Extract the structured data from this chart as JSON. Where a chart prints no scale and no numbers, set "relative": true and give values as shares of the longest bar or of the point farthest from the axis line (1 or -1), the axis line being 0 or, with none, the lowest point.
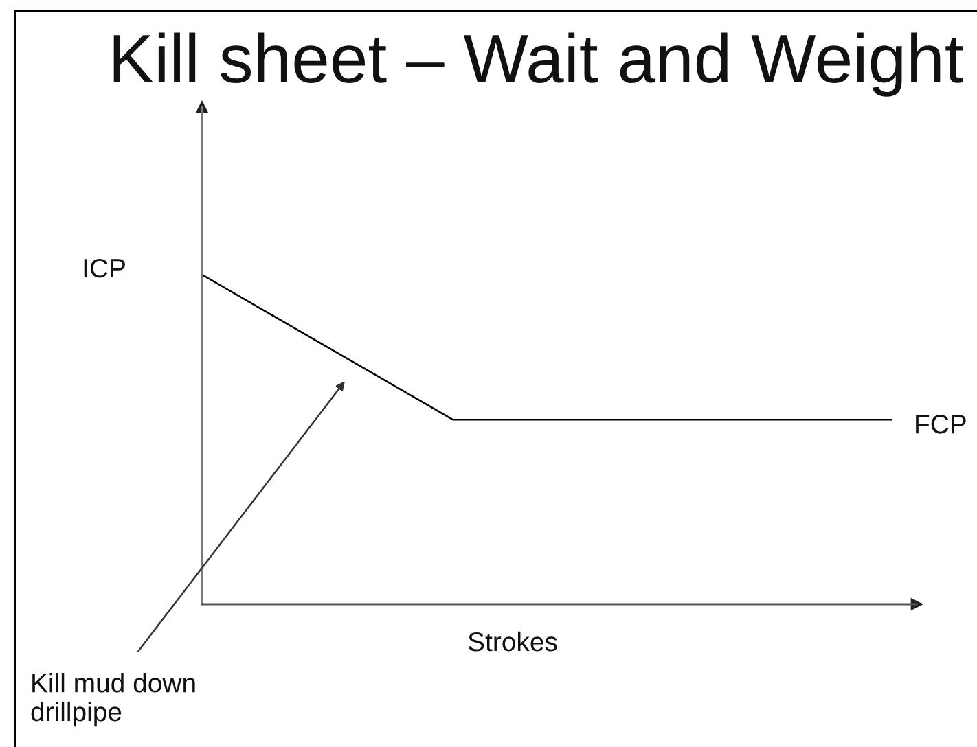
{
  "chart_data": {
    "type": "line",
    "title": "Kill sheet – Wait and Weight",
    "xlabel": "Strokes",
    "relative": true,
    "categories": [
      null,
      null,
      null,
      null,
      null,
      null,
      null,
      null,
      null,
      null,
      null,
      null
    ],
    "series": [
      {
        "color": "#000000",
        "values": [
          1,
          0.89,
          0.78,
          0.67,
          0.56,
          0.56,
          0.56,
          0.56,
          0.56,
          0.56,
          0.56,
          0.56
        ]
      }
    ],
    "annotations": [
      "ICP",
      "FCP",
      "Kill mud down\ndrillpipe"
    ],
    "line_style": "solid"
  }
}
